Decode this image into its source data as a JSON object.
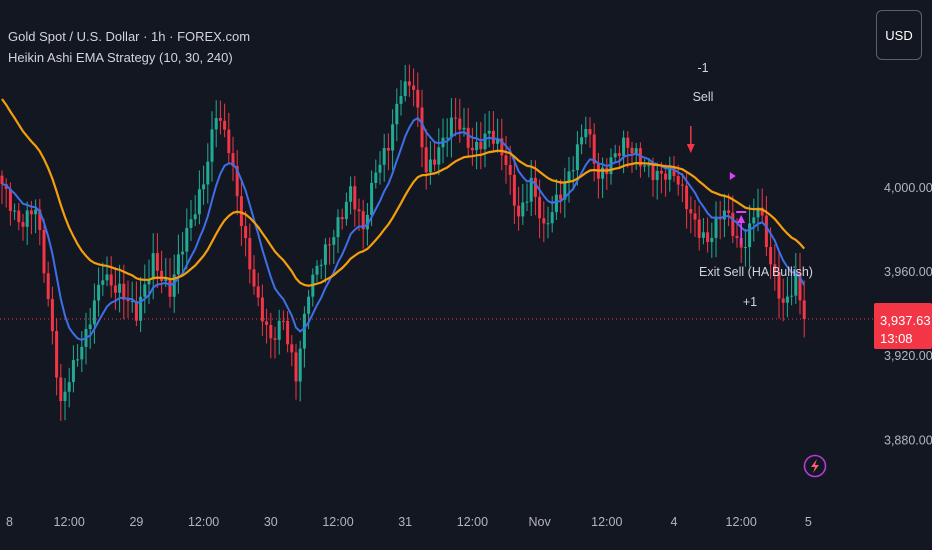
{
  "header": {
    "symbol_line": "Gold Spot / U.S. Dollar · 1h · FOREX.com",
    "strategy_line": "Heikin Ashi EMA Strategy (10, 30, 240)"
  },
  "currency_button": "USD",
  "price_tag": {
    "price": "3,937.63",
    "countdown": "13:08",
    "color": "#f23645"
  },
  "annotations": {
    "sell_qty": "-1",
    "sell_label": "Sell",
    "exit_label": "Exit Sell (HA Bullish)",
    "exit_qty": "+1"
  },
  "icons": {
    "alert": "lightning-icon"
  },
  "colors": {
    "background": "#131722",
    "bull": "#22ab94",
    "bear": "#f23645",
    "ema_fast": "#3d6fe8",
    "ema_slow": "#f59e0b",
    "signal": "#e040fb",
    "sell_arrow": "#f23645"
  },
  "chart_data": {
    "type": "candlestick",
    "title": "Gold Spot / U.S. Dollar · 1h · FOREX.com",
    "ylim": [
      3854,
      4075
    ],
    "y_ticks": [
      {
        "value": 3880,
        "label": "3,880.00"
      },
      {
        "value": 3920,
        "label": "3,920.00"
      },
      {
        "value": 3960,
        "label": "3,960.00"
      },
      {
        "value": 4000,
        "label": "4,000.00"
      }
    ],
    "x_ticks": [
      {
        "bar": 0,
        "label": "8"
      },
      {
        "bar": 16,
        "label": "12:00"
      },
      {
        "bar": 32,
        "label": "29"
      },
      {
        "bar": 48,
        "label": "12:00"
      },
      {
        "bar": 64,
        "label": "30"
      },
      {
        "bar": 80,
        "label": "12:00"
      },
      {
        "bar": 96,
        "label": "31"
      },
      {
        "bar": 112,
        "label": "12:00"
      },
      {
        "bar": 128,
        "label": "Nov"
      },
      {
        "bar": 144,
        "label": "12:00"
      },
      {
        "bar": 160,
        "label": "4"
      },
      {
        "bar": 176,
        "label": "12:00"
      },
      {
        "bar": 192,
        "label": "5"
      }
    ],
    "anchors": [
      {
        "bar": 0,
        "v": 4000
      },
      {
        "bar": 4,
        "v": 3985
      },
      {
        "bar": 8,
        "v": 3990
      },
      {
        "bar": 11,
        "v": 3945
      },
      {
        "bar": 14,
        "v": 3898
      },
      {
        "bar": 16,
        "v": 3912
      },
      {
        "bar": 20,
        "v": 3928
      },
      {
        "bar": 24,
        "v": 3960
      },
      {
        "bar": 28,
        "v": 3952
      },
      {
        "bar": 32,
        "v": 3938
      },
      {
        "bar": 36,
        "v": 3968
      },
      {
        "bar": 40,
        "v": 3950
      },
      {
        "bar": 44,
        "v": 3978
      },
      {
        "bar": 48,
        "v": 4005
      },
      {
        "bar": 51,
        "v": 4035
      },
      {
        "bar": 54,
        "v": 4018
      },
      {
        "bar": 58,
        "v": 3975
      },
      {
        "bar": 61,
        "v": 3945
      },
      {
        "bar": 64,
        "v": 3925
      },
      {
        "bar": 67,
        "v": 3938
      },
      {
        "bar": 70,
        "v": 3912
      },
      {
        "bar": 73,
        "v": 3950
      },
      {
        "bar": 76,
        "v": 3965
      },
      {
        "bar": 80,
        "v": 3985
      },
      {
        "bar": 83,
        "v": 3998
      },
      {
        "bar": 86,
        "v": 3978
      },
      {
        "bar": 89,
        "v": 4010
      },
      {
        "bar": 92,
        "v": 4022
      },
      {
        "bar": 95,
        "v": 4045
      },
      {
        "bar": 98,
        "v": 4048
      },
      {
        "bar": 101,
        "v": 4010
      },
      {
        "bar": 104,
        "v": 4018
      },
      {
        "bar": 108,
        "v": 4032
      },
      {
        "bar": 112,
        "v": 4020
      },
      {
        "bar": 116,
        "v": 4025
      },
      {
        "bar": 120,
        "v": 4012
      },
      {
        "bar": 123,
        "v": 3988
      },
      {
        "bar": 126,
        "v": 4002
      },
      {
        "bar": 129,
        "v": 3978
      },
      {
        "bar": 132,
        "v": 3995
      },
      {
        "bar": 136,
        "v": 4012
      },
      {
        "bar": 139,
        "v": 4028
      },
      {
        "bar": 142,
        "v": 4005
      },
      {
        "bar": 145,
        "v": 4015
      },
      {
        "bar": 148,
        "v": 4020
      },
      {
        "bar": 152,
        "v": 4012
      },
      {
        "bar": 156,
        "v": 4008
      },
      {
        "bar": 160,
        "v": 4005
      },
      {
        "bar": 164,
        "v": 3988
      },
      {
        "bar": 168,
        "v": 3975
      },
      {
        "bar": 172,
        "v": 3988
      },
      {
        "bar": 176,
        "v": 3972
      },
      {
        "bar": 180,
        "v": 3992
      },
      {
        "bar": 183,
        "v": 3962
      },
      {
        "bar": 186,
        "v": 3945
      },
      {
        "bar": 189,
        "v": 3958
      },
      {
        "bar": 191,
        "v": 3937.63
      }
    ],
    "sell_signal_bar": 164,
    "exit_signal_bar": 176,
    "last_price": 3937.63
  }
}
